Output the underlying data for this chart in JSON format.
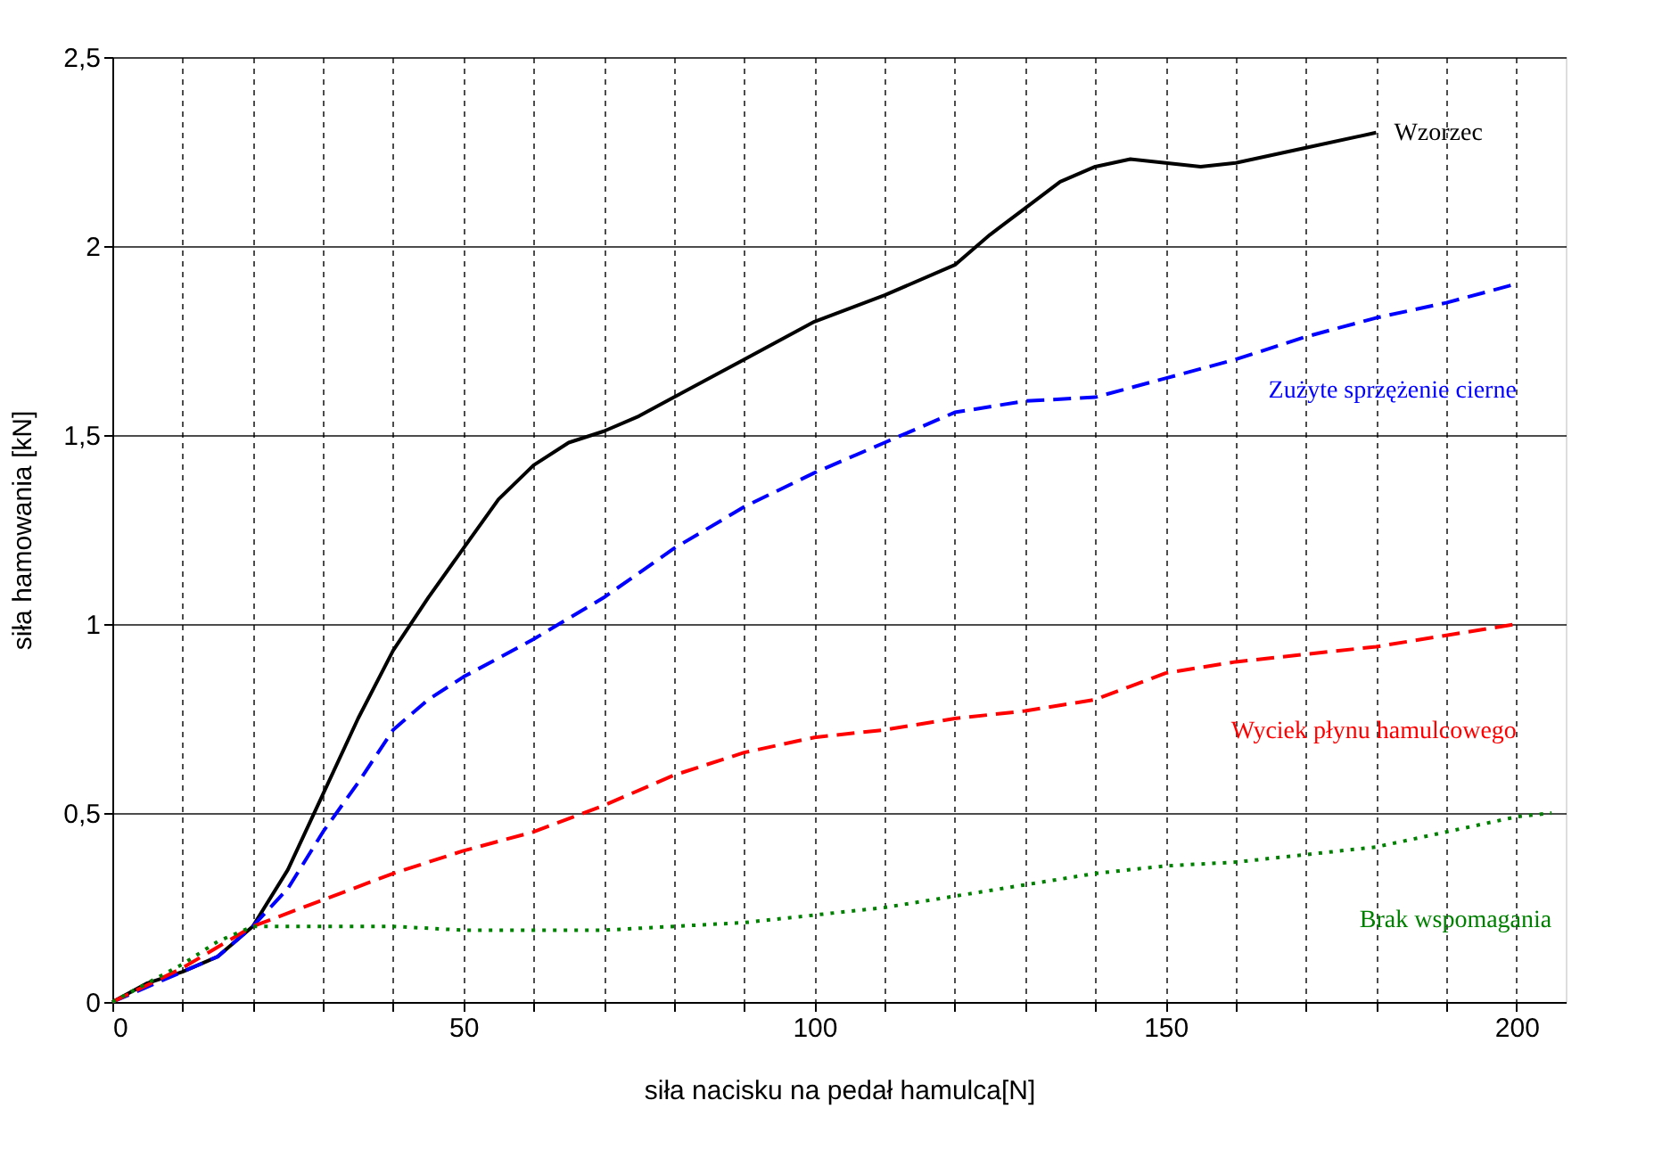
{
  "chart_data": {
    "type": "line",
    "xlabel": "siła nacisku na pedał hamulca[N]",
    "ylabel": "siła hamowania [kN]",
    "xlim": [
      0,
      207
    ],
    "ylim": [
      0,
      2.5
    ],
    "xticks": [
      0,
      {
        "value": 10,
        "label": null
      },
      {
        "value": 20,
        "label": null
      },
      {
        "value": 30,
        "label": null
      },
      {
        "value": 40,
        "label": null
      },
      50,
      {
        "value": 60,
        "label": null
      },
      {
        "value": 70,
        "label": null
      },
      {
        "value": 80,
        "label": null
      },
      {
        "value": 90,
        "label": null
      },
      100,
      {
        "value": 110,
        "label": null
      },
      {
        "value": 120,
        "label": null
      },
      {
        "value": 130,
        "label": null
      },
      {
        "value": 140,
        "label": null
      },
      150,
      {
        "value": 160,
        "label": null
      },
      {
        "value": 170,
        "label": null
      },
      {
        "value": 180,
        "label": null
      },
      {
        "value": 190,
        "label": null
      },
      200
    ],
    "yticks": [
      0,
      {
        "value": 0.5,
        "label": "0,5"
      },
      1,
      {
        "value": 1.5,
        "label": "1,5"
      },
      2,
      {
        "value": 2.5,
        "label": "2,5"
      }
    ],
    "grid": true,
    "marker": "none",
    "series": [
      {
        "name": "Wzorzec",
        "color": "#000000",
        "line_style": "solid",
        "x": [
          0,
          5,
          10,
          15,
          20,
          25,
          30,
          35,
          40,
          45,
          50,
          55,
          60,
          65,
          70,
          75,
          80,
          90,
          100,
          110,
          120,
          125,
          130,
          135,
          140,
          145,
          150,
          155,
          160,
          170,
          180
        ],
        "values": [
          0,
          0.05,
          0.08,
          0.12,
          0.2,
          0.35,
          0.55,
          0.75,
          0.93,
          1.07,
          1.2,
          1.33,
          1.42,
          1.48,
          1.51,
          1.55,
          1.6,
          1.7,
          1.8,
          1.87,
          1.95,
          2.03,
          2.1,
          2.17,
          2.21,
          2.23,
          2.22,
          2.21,
          2.22,
          2.26,
          2.3
        ]
      },
      {
        "name": "Zużyte sprzężenie cierne",
        "color": "#0000ff",
        "line_style": "dashed",
        "x": [
          0,
          10,
          15,
          20,
          25,
          30,
          35,
          40,
          45,
          50,
          60,
          70,
          80,
          90,
          100,
          110,
          120,
          130,
          140,
          150,
          160,
          170,
          180,
          190,
          200
        ],
        "values": [
          0,
          0.08,
          0.12,
          0.2,
          0.3,
          0.45,
          0.58,
          0.72,
          0.8,
          0.86,
          0.96,
          1.07,
          1.2,
          1.31,
          1.4,
          1.48,
          1.56,
          1.59,
          1.6,
          1.65,
          1.7,
          1.76,
          1.81,
          1.85,
          1.9
        ]
      },
      {
        "name": "Wyciek płynu hamulcowego",
        "color": "#ff0000",
        "line_style": "dashed",
        "x": [
          0,
          10,
          20,
          30,
          40,
          50,
          60,
          70,
          80,
          90,
          100,
          110,
          120,
          130,
          140,
          150,
          160,
          170,
          180,
          190,
          200
        ],
        "values": [
          0,
          0.09,
          0.2,
          0.27,
          0.34,
          0.4,
          0.45,
          0.52,
          0.6,
          0.66,
          0.7,
          0.72,
          0.75,
          0.77,
          0.8,
          0.87,
          0.9,
          0.92,
          0.94,
          0.97,
          1.0
        ]
      },
      {
        "name": "Brak wspomagania",
        "color": "#008000",
        "line_style": "dotted",
        "x": [
          0,
          10,
          15,
          20,
          30,
          40,
          50,
          60,
          70,
          80,
          90,
          100,
          110,
          120,
          130,
          140,
          150,
          160,
          170,
          180,
          190,
          200,
          205
        ],
        "values": [
          0,
          0.1,
          0.16,
          0.2,
          0.2,
          0.2,
          0.19,
          0.19,
          0.19,
          0.2,
          0.21,
          0.23,
          0.25,
          0.28,
          0.31,
          0.34,
          0.36,
          0.37,
          0.39,
          0.41,
          0.45,
          0.49,
          0.5
        ]
      }
    ]
  }
}
